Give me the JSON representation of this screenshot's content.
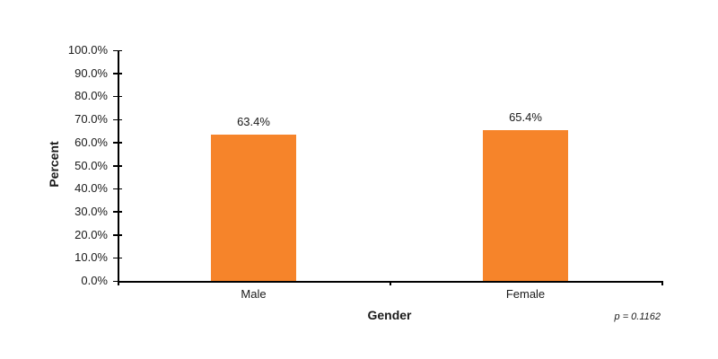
{
  "chart_data": {
    "type": "bar",
    "title": "",
    "xlabel": "Gender",
    "ylabel": "Percent",
    "categories": [
      "Male",
      "Female"
    ],
    "values": [
      63.4,
      65.4
    ],
    "value_labels": [
      "63.4%",
      "65.4%"
    ],
    "ylim": [
      0,
      100
    ],
    "yticks": [
      "0.0%",
      "10.0%",
      "20.0%",
      "30.0%",
      "40.0%",
      "50.0%",
      "60.0%",
      "70.0%",
      "80.0%",
      "90.0%",
      "100.0%"
    ],
    "grid": false,
    "legend": null,
    "bar_color": "#f6842a",
    "annotation": "p = 0.1162"
  }
}
